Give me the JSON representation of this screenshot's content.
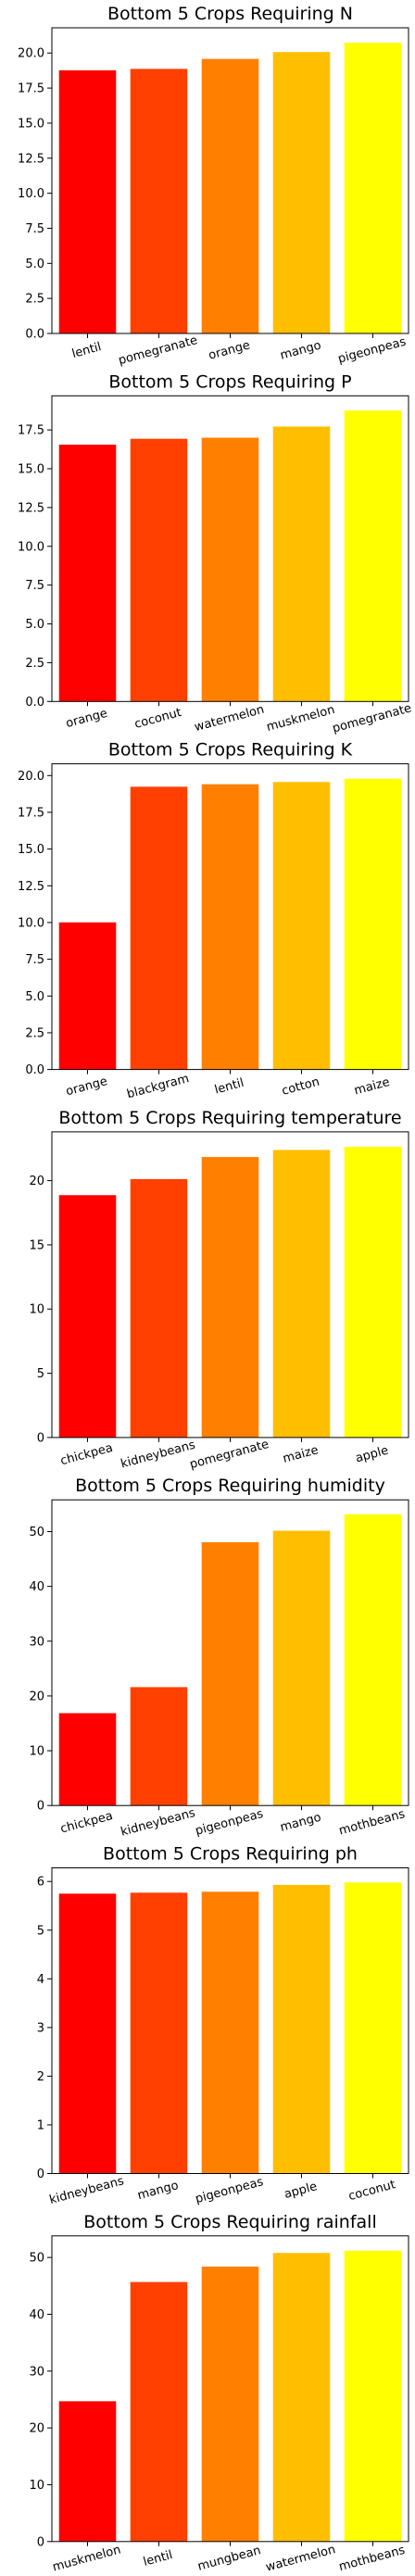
{
  "chart_data": [
    {
      "type": "bar",
      "title": "Bottom 5 Crops Requiring N",
      "categories": [
        "lentil",
        "pomegranate",
        "orange",
        "mango",
        "pigeonpeas"
      ],
      "values": [
        18.77,
        18.87,
        19.58,
        20.07,
        20.73
      ],
      "colors": [
        "#ff0000",
        "#ff4000",
        "#ff8000",
        "#ffbf00",
        "#ffff00"
      ],
      "ylim": [
        0,
        21.8
      ],
      "yticks": [
        0.0,
        2.5,
        5.0,
        7.5,
        10.0,
        12.5,
        15.0,
        17.5,
        20.0
      ],
      "ytick_labels": [
        "0.0",
        "2.5",
        "5.0",
        "7.5",
        "10.0",
        "12.5",
        "15.0",
        "17.5",
        "20.0"
      ],
      "xlabel": "",
      "ylabel": "",
      "grid": false
    },
    {
      "type": "bar",
      "title": "Bottom 5 Crops Requiring P",
      "categories": [
        "orange",
        "coconut",
        "watermelon",
        "muskmelon",
        "pomegranate"
      ],
      "values": [
        16.55,
        16.93,
        17.0,
        17.72,
        18.75
      ],
      "colors": [
        "#ff0000",
        "#ff4000",
        "#ff8000",
        "#ffbf00",
        "#ffff00"
      ],
      "ylim": [
        0,
        19.7
      ],
      "yticks": [
        0.0,
        2.5,
        5.0,
        7.5,
        10.0,
        12.5,
        15.0,
        17.5
      ],
      "ytick_labels": [
        "0.0",
        "2.5",
        "5.0",
        "7.5",
        "10.0",
        "12.5",
        "15.0",
        "17.5"
      ],
      "xlabel": "",
      "ylabel": "",
      "grid": false
    },
    {
      "type": "bar",
      "title": "Bottom 5 Crops Requiring K",
      "categories": [
        "orange",
        "blackgram",
        "lentil",
        "cotton",
        "maize"
      ],
      "values": [
        10.01,
        19.24,
        19.41,
        19.56,
        19.79
      ],
      "colors": [
        "#ff0000",
        "#ff4000",
        "#ff8000",
        "#ffbf00",
        "#ffff00"
      ],
      "ylim": [
        0,
        20.8
      ],
      "yticks": [
        0.0,
        2.5,
        5.0,
        7.5,
        10.0,
        12.5,
        15.0,
        17.5,
        20.0
      ],
      "ytick_labels": [
        "0.0",
        "2.5",
        "5.0",
        "7.5",
        "10.0",
        "12.5",
        "15.0",
        "17.5",
        "20.0"
      ],
      "xlabel": "",
      "ylabel": "",
      "grid": false
    },
    {
      "type": "bar",
      "title": "Bottom 5 Crops Requiring temperature",
      "categories": [
        "chickpea",
        "kidneybeans",
        "pomegranate",
        "maize",
        "apple"
      ],
      "values": [
        18.87,
        20.12,
        21.84,
        22.39,
        22.63
      ],
      "colors": [
        "#ff0000",
        "#ff4000",
        "#ff8000",
        "#ffbf00",
        "#ffff00"
      ],
      "ylim": [
        0,
        23.8
      ],
      "yticks": [
        0,
        5,
        10,
        15,
        20
      ],
      "ytick_labels": [
        "0",
        "5",
        "10",
        "15",
        "20"
      ],
      "xlabel": "",
      "ylabel": "",
      "grid": false
    },
    {
      "type": "bar",
      "title": "Bottom 5 Crops Requiring humidity",
      "categories": [
        "chickpea",
        "kidneybeans",
        "pigeonpeas",
        "mango",
        "mothbeans"
      ],
      "values": [
        16.86,
        21.61,
        48.06,
        50.16,
        53.16
      ],
      "colors": [
        "#ff0000",
        "#ff4000",
        "#ff8000",
        "#ffbf00",
        "#ffff00"
      ],
      "ylim": [
        0,
        55.8
      ],
      "yticks": [
        0,
        10,
        20,
        30,
        40,
        50
      ],
      "ytick_labels": [
        "0",
        "10",
        "20",
        "30",
        "40",
        "50"
      ],
      "xlabel": "",
      "ylabel": "",
      "grid": false
    },
    {
      "type": "bar",
      "title": "Bottom 5 Crops Requiring ph",
      "categories": [
        "kidneybeans",
        "mango",
        "pigeonpeas",
        "apple",
        "coconut"
      ],
      "values": [
        5.75,
        5.77,
        5.79,
        5.93,
        5.98
      ],
      "colors": [
        "#ff0000",
        "#ff4000",
        "#ff8000",
        "#ffbf00",
        "#ffff00"
      ],
      "ylim": [
        0,
        6.28
      ],
      "yticks": [
        0,
        1,
        2,
        3,
        4,
        5,
        6
      ],
      "ytick_labels": [
        "0",
        "1",
        "2",
        "3",
        "4",
        "5",
        "6"
      ],
      "xlabel": "",
      "ylabel": "",
      "grid": false
    },
    {
      "type": "bar",
      "title": "Bottom 5 Crops Requiring rainfall",
      "categories": [
        "muskmelon",
        "lentil",
        "mungbean",
        "watermelon",
        "mothbeans"
      ],
      "values": [
        24.69,
        45.68,
        48.4,
        50.79,
        51.2
      ],
      "colors": [
        "#ff0000",
        "#ff4000",
        "#ff8000",
        "#ffbf00",
        "#ffff00"
      ],
      "ylim": [
        0,
        53.8
      ],
      "yticks": [
        0,
        10,
        20,
        30,
        40,
        50
      ],
      "ytick_labels": [
        "0",
        "10",
        "20",
        "30",
        "40",
        "50"
      ],
      "xlabel": "",
      "ylabel": "",
      "grid": false
    }
  ]
}
